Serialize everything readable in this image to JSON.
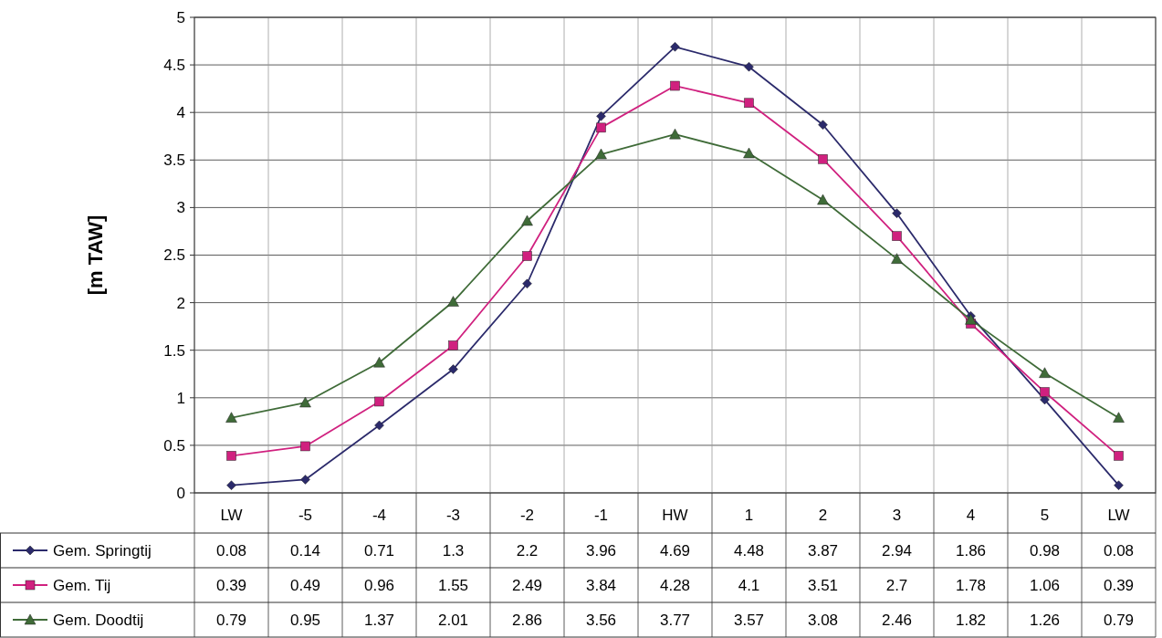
{
  "chart_data": {
    "type": "line",
    "ylabel": "[m TAW]",
    "categories": [
      "LW",
      "-5",
      "-4",
      "-3",
      "-2",
      "-1",
      "HW",
      "1",
      "2",
      "3",
      "4",
      "5",
      "LW"
    ],
    "series": [
      {
        "name": "Gem. Springtij",
        "color": "#2b2a6b",
        "marker": "diamond",
        "values": [
          0.08,
          0.14,
          0.71,
          1.3,
          2.2,
          3.96,
          4.69,
          4.48,
          3.87,
          2.94,
          1.86,
          0.98,
          0.08
        ]
      },
      {
        "name": "Gem. Tij",
        "color": "#d0217f",
        "marker": "square",
        "values": [
          0.39,
          0.49,
          0.96,
          1.55,
          2.49,
          3.84,
          4.28,
          4.1,
          3.51,
          2.7,
          1.78,
          1.06,
          0.39
        ]
      },
      {
        "name": "Gem. Doodtij",
        "color": "#3f6b38",
        "marker": "triangle",
        "values": [
          0.79,
          0.95,
          1.37,
          2.01,
          2.86,
          3.56,
          3.77,
          3.57,
          3.08,
          2.46,
          1.82,
          1.26,
          0.79
        ]
      }
    ],
    "ylim": [
      0,
      5
    ],
    "yticks": [
      0,
      0.5,
      1,
      1.5,
      2,
      2.5,
      3,
      3.5,
      4,
      4.5,
      5
    ],
    "grid": true,
    "legend": "bottom left",
    "data_labels": true
  }
}
